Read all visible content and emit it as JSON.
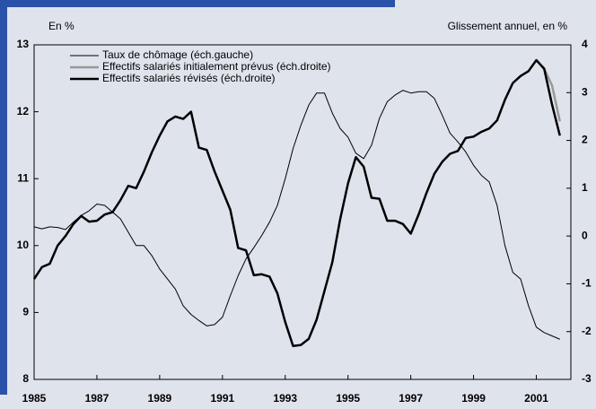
{
  "chart_data": {
    "type": "line",
    "y_label": "En %",
    "y2_label": "Glissement annuel, en %",
    "x": [
      1985,
      1985.25,
      1985.5,
      1985.75,
      1986,
      1986.25,
      1986.5,
      1986.75,
      1987,
      1987.25,
      1987.5,
      1987.75,
      1988,
      1988.25,
      1988.5,
      1988.75,
      1989,
      1989.25,
      1989.5,
      1989.75,
      1990,
      1990.25,
      1990.5,
      1990.75,
      1991,
      1991.25,
      1991.5,
      1991.75,
      1992,
      1992.25,
      1992.5,
      1992.75,
      1993,
      1993.25,
      1993.5,
      1993.75,
      1994,
      1994.25,
      1994.5,
      1994.75,
      1995,
      1995.25,
      1995.5,
      1995.75,
      1996,
      1996.25,
      1996.5,
      1996.75,
      1997,
      1997.25,
      1997.5,
      1997.75,
      1998,
      1998.25,
      1998.5,
      1998.75,
      1999,
      1999.25,
      1999.5,
      1999.75,
      2000,
      2000.25,
      2000.5,
      2000.75,
      2001,
      2001.25,
      2001.5,
      2001.75
    ],
    "series": [
      {
        "name": "Taux de chômage (éch.gauche)",
        "color": "#000000",
        "line_width": 1,
        "axis": "y",
        "values": [
          10.28,
          10.25,
          10.28,
          10.27,
          10.24,
          10.35,
          10.45,
          10.52,
          10.62,
          10.6,
          10.5,
          10.4,
          10.2,
          10.0,
          10.0,
          9.85,
          9.65,
          9.5,
          9.35,
          9.1,
          8.97,
          8.88,
          8.8,
          8.82,
          8.93,
          9.25,
          9.55,
          9.8,
          9.97,
          10.15,
          10.35,
          10.6,
          11.0,
          11.45,
          11.8,
          12.1,
          12.28,
          12.28,
          11.98,
          11.75,
          11.62,
          11.38,
          11.3,
          11.5,
          11.9,
          12.15,
          12.25,
          12.32,
          12.28,
          12.3,
          12.3,
          12.2,
          11.95,
          11.68,
          11.55,
          11.4,
          11.2,
          11.05,
          10.95,
          10.6,
          10.0,
          9.6,
          9.5,
          9.1,
          8.78,
          8.7,
          8.65,
          8.6
        ]
      },
      {
        "name": "Effectifs salariés initialement prévus (éch.droite)",
        "color": "#999999",
        "line_width": 2.5,
        "axis": "y2",
        "values": [
          null,
          null,
          null,
          null,
          null,
          null,
          null,
          null,
          null,
          null,
          null,
          null,
          null,
          null,
          null,
          null,
          null,
          null,
          null,
          null,
          null,
          null,
          null,
          null,
          null,
          null,
          null,
          null,
          null,
          null,
          null,
          null,
          null,
          null,
          null,
          null,
          null,
          null,
          null,
          null,
          null,
          null,
          null,
          null,
          null,
          null,
          null,
          null,
          null,
          null,
          null,
          null,
          null,
          null,
          null,
          null,
          null,
          null,
          null,
          null,
          null,
          null,
          null,
          null,
          3.68,
          3.5,
          3.15,
          2.4
        ]
      },
      {
        "name": "Effectifs salariés révisés (éch.droite)",
        "color": "#000000",
        "line_width": 2.5,
        "axis": "y2",
        "values": [
          -0.9,
          -0.65,
          -0.58,
          -0.2,
          0.0,
          0.25,
          0.42,
          0.3,
          0.32,
          0.45,
          0.5,
          0.75,
          1.05,
          1.0,
          1.35,
          1.75,
          2.1,
          2.4,
          2.5,
          2.45,
          2.6,
          1.85,
          1.8,
          1.35,
          0.95,
          0.55,
          -0.25,
          -0.3,
          -0.82,
          -0.8,
          -0.85,
          -1.2,
          -1.8,
          -2.3,
          -2.28,
          -2.15,
          -1.75,
          -1.15,
          -0.55,
          0.35,
          1.1,
          1.65,
          1.45,
          0.8,
          0.78,
          0.32,
          0.32,
          0.25,
          0.05,
          0.45,
          0.9,
          1.3,
          1.55,
          1.72,
          1.78,
          2.05,
          2.08,
          2.18,
          2.25,
          2.42,
          2.85,
          3.2,
          3.35,
          3.45,
          3.68,
          3.5,
          2.75,
          2.1
        ]
      }
    ],
    "xlim": [
      1985,
      2002.1
    ],
    "xticks": [
      1985,
      1987,
      1989,
      1991,
      1993,
      1995,
      1997,
      1999,
      2001
    ],
    "ylim": [
      8,
      13
    ],
    "yticks": [
      8,
      9,
      10,
      11,
      12,
      13
    ],
    "y2lim": [
      -3,
      4
    ],
    "y2ticks": [
      -3,
      -2,
      -1,
      0,
      1,
      2,
      3,
      4
    ],
    "legend": "upper left"
  }
}
